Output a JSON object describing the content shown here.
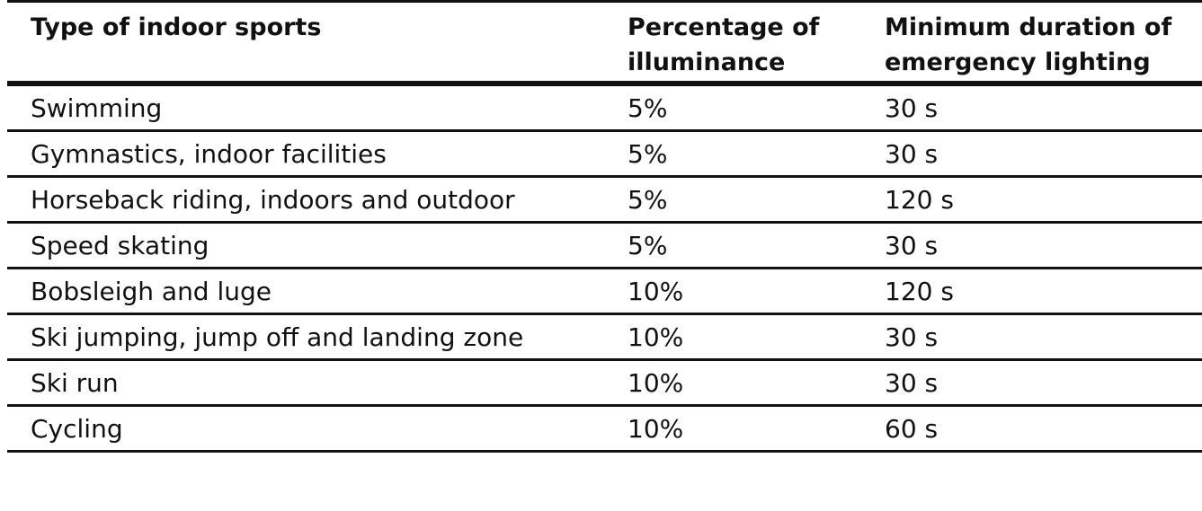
{
  "table": {
    "headers": [
      "Type of indoor sports",
      "Percentage of\nilluminance",
      "Minimum duration of\nemergency lighting"
    ],
    "rows": [
      [
        "Swimming",
        "5%",
        "30 s"
      ],
      [
        "Gymnastics, indoor facilities",
        "5%",
        "30 s"
      ],
      [
        "Horseback riding, indoors and outdoor",
        "5%",
        "120 s"
      ],
      [
        "Speed skating",
        "5%",
        "30 s"
      ],
      [
        "Bobsleigh and luge",
        "10%",
        "120 s"
      ],
      [
        "Ski jumping, jump off and landing zone",
        "10%",
        "30 s"
      ],
      [
        "Ski run",
        "10%",
        "30 s"
      ],
      [
        "Cycling",
        "10%",
        "60 s"
      ]
    ]
  }
}
